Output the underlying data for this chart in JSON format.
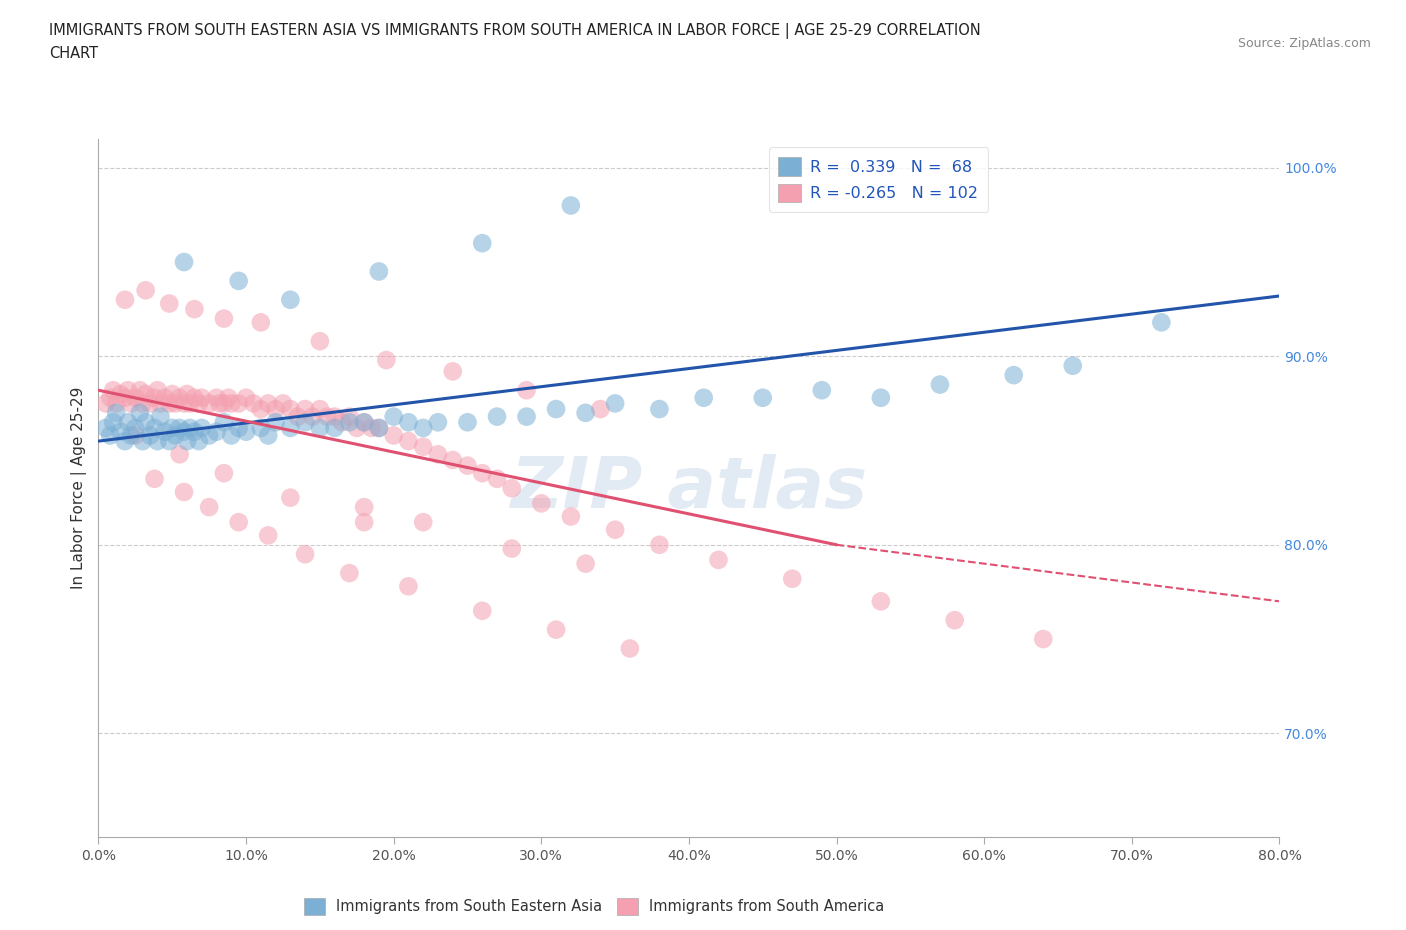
{
  "title_line1": "IMMIGRANTS FROM SOUTH EASTERN ASIA VS IMMIGRANTS FROM SOUTH AMERICA IN LABOR FORCE | AGE 25-29 CORRELATION",
  "title_line2": "CHART",
  "source": "Source: ZipAtlas.com",
  "ylabel": "In Labor Force | Age 25-29",
  "xlim": [
    0.0,
    0.8
  ],
  "ylim": [
    0.645,
    1.015
  ],
  "xticks": [
    0.0,
    0.1,
    0.2,
    0.3,
    0.4,
    0.5,
    0.6,
    0.7,
    0.8
  ],
  "yticks": [
    0.7,
    0.8,
    0.9,
    1.0
  ],
  "ytick_labels": [
    "70.0%",
    "80.0%",
    "90.0%",
    "100.0%"
  ],
  "xtick_labels": [
    "0.0%",
    "10.0%",
    "20.0%",
    "30.0%",
    "40.0%",
    "50.0%",
    "60.0%",
    "70.0%",
    "80.0%"
  ],
  "blue_color": "#7BAFD4",
  "pink_color": "#F4A0B0",
  "blue_line_color": "#2255AA",
  "pink_line_color": "#E05070",
  "R_blue": 0.339,
  "N_blue": 68,
  "R_pink": -0.265,
  "N_pink": 102,
  "legend_label_blue": "Immigrants from South Eastern Asia",
  "legend_label_pink": "Immigrants from South America",
  "watermark": "ZIP atlas",
  "blue_scatter_x": [
    0.005,
    0.008,
    0.01,
    0.012,
    0.015,
    0.018,
    0.02,
    0.022,
    0.025,
    0.028,
    0.03,
    0.032,
    0.035,
    0.038,
    0.04,
    0.042,
    0.045,
    0.048,
    0.05,
    0.052,
    0.055,
    0.058,
    0.06,
    0.062,
    0.065,
    0.068,
    0.07,
    0.075,
    0.08,
    0.085,
    0.09,
    0.095,
    0.1,
    0.11,
    0.115,
    0.12,
    0.13,
    0.14,
    0.15,
    0.16,
    0.17,
    0.18,
    0.19,
    0.2,
    0.21,
    0.22,
    0.23,
    0.25,
    0.27,
    0.29,
    0.31,
    0.33,
    0.35,
    0.38,
    0.41,
    0.45,
    0.49,
    0.53,
    0.57,
    0.62,
    0.66,
    0.72,
    0.058,
    0.095,
    0.13,
    0.19,
    0.26,
    0.32
  ],
  "blue_scatter_y": [
    0.862,
    0.858,
    0.865,
    0.87,
    0.86,
    0.855,
    0.865,
    0.858,
    0.862,
    0.87,
    0.855,
    0.865,
    0.858,
    0.862,
    0.855,
    0.868,
    0.86,
    0.855,
    0.862,
    0.858,
    0.862,
    0.86,
    0.855,
    0.862,
    0.86,
    0.855,
    0.862,
    0.858,
    0.86,
    0.865,
    0.858,
    0.862,
    0.86,
    0.862,
    0.858,
    0.865,
    0.862,
    0.865,
    0.862,
    0.862,
    0.865,
    0.865,
    0.862,
    0.868,
    0.865,
    0.862,
    0.865,
    0.865,
    0.868,
    0.868,
    0.872,
    0.87,
    0.875,
    0.872,
    0.878,
    0.878,
    0.882,
    0.878,
    0.885,
    0.89,
    0.895,
    0.918,
    0.95,
    0.94,
    0.93,
    0.945,
    0.96,
    0.98
  ],
  "pink_scatter_x": [
    0.005,
    0.008,
    0.01,
    0.012,
    0.015,
    0.018,
    0.02,
    0.022,
    0.025,
    0.028,
    0.03,
    0.032,
    0.035,
    0.038,
    0.04,
    0.042,
    0.045,
    0.048,
    0.05,
    0.052,
    0.055,
    0.058,
    0.06,
    0.062,
    0.065,
    0.068,
    0.07,
    0.075,
    0.08,
    0.082,
    0.085,
    0.088,
    0.09,
    0.095,
    0.1,
    0.105,
    0.11,
    0.115,
    0.12,
    0.125,
    0.13,
    0.135,
    0.14,
    0.145,
    0.15,
    0.155,
    0.16,
    0.165,
    0.17,
    0.175,
    0.18,
    0.185,
    0.19,
    0.2,
    0.21,
    0.22,
    0.23,
    0.24,
    0.25,
    0.26,
    0.27,
    0.28,
    0.3,
    0.32,
    0.35,
    0.38,
    0.42,
    0.47,
    0.53,
    0.58,
    0.64,
    0.018,
    0.032,
    0.048,
    0.065,
    0.085,
    0.11,
    0.15,
    0.195,
    0.24,
    0.29,
    0.34,
    0.038,
    0.058,
    0.075,
    0.095,
    0.115,
    0.14,
    0.17,
    0.21,
    0.26,
    0.31,
    0.36,
    0.18,
    0.22,
    0.28,
    0.33,
    0.025,
    0.055,
    0.085,
    0.13,
    0.18
  ],
  "pink_scatter_y": [
    0.875,
    0.878,
    0.882,
    0.875,
    0.88,
    0.878,
    0.882,
    0.875,
    0.878,
    0.882,
    0.875,
    0.88,
    0.875,
    0.878,
    0.882,
    0.875,
    0.878,
    0.875,
    0.88,
    0.875,
    0.878,
    0.875,
    0.88,
    0.875,
    0.878,
    0.875,
    0.878,
    0.875,
    0.878,
    0.875,
    0.875,
    0.878,
    0.875,
    0.875,
    0.878,
    0.875,
    0.872,
    0.875,
    0.872,
    0.875,
    0.872,
    0.868,
    0.872,
    0.868,
    0.872,
    0.868,
    0.868,
    0.865,
    0.868,
    0.862,
    0.865,
    0.862,
    0.862,
    0.858,
    0.855,
    0.852,
    0.848,
    0.845,
    0.842,
    0.838,
    0.835,
    0.83,
    0.822,
    0.815,
    0.808,
    0.8,
    0.792,
    0.782,
    0.77,
    0.76,
    0.75,
    0.93,
    0.935,
    0.928,
    0.925,
    0.92,
    0.918,
    0.908,
    0.898,
    0.892,
    0.882,
    0.872,
    0.835,
    0.828,
    0.82,
    0.812,
    0.805,
    0.795,
    0.785,
    0.778,
    0.765,
    0.755,
    0.745,
    0.82,
    0.812,
    0.798,
    0.79,
    0.858,
    0.848,
    0.838,
    0.825,
    0.812
  ]
}
